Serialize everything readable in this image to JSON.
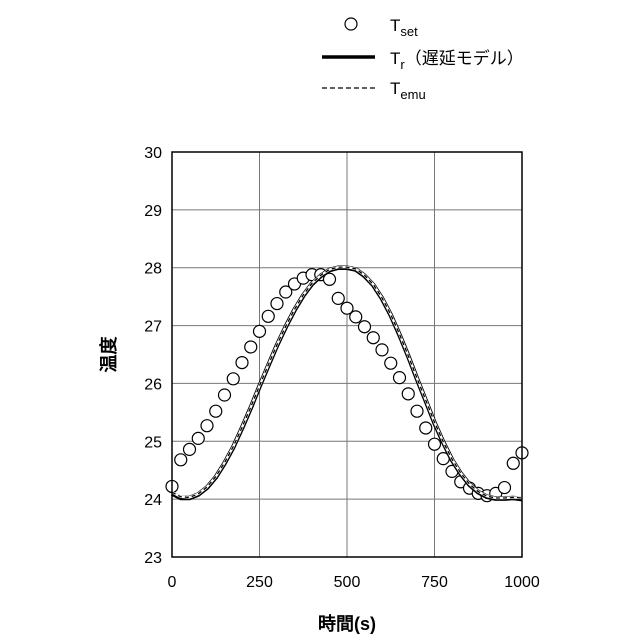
{
  "chart_data": {
    "type": "line",
    "xlabel": "時間(s)",
    "ylabel": "温度",
    "xlim": [
      0,
      1000
    ],
    "ylim": [
      23,
      30
    ],
    "xticks": [
      0,
      250,
      500,
      750,
      1000
    ],
    "yticks": [
      23,
      24,
      25,
      26,
      27,
      28,
      29,
      30
    ],
    "grid": true,
    "legend_position": "top",
    "series": [
      {
        "name": "Tset",
        "name_base": "T",
        "name_sub": "set",
        "style": "markers-open-circle",
        "x": [
          0,
          25,
          50,
          75,
          100,
          125,
          150,
          175,
          200,
          225,
          250,
          275,
          300,
          325,
          350,
          375,
          400,
          425,
          450,
          475,
          500,
          525,
          550,
          575,
          600,
          625,
          650,
          675,
          700,
          725,
          750,
          775,
          800,
          825,
          850,
          875,
          900,
          925,
          950,
          975,
          1000
        ],
        "y": [
          24.22,
          24.68,
          24.86,
          25.05,
          25.27,
          25.52,
          25.8,
          26.08,
          26.36,
          26.63,
          26.9,
          27.16,
          27.38,
          27.58,
          27.72,
          27.82,
          27.88,
          27.88,
          27.8,
          27.47,
          27.3,
          27.15,
          26.98,
          26.79,
          26.58,
          26.35,
          26.1,
          25.82,
          25.52,
          25.23,
          24.95,
          24.7,
          24.48,
          24.3,
          24.19,
          24.1,
          24.06,
          24.1,
          24.2,
          24.62,
          24.8
        ]
      },
      {
        "name": "Tr（遅延モデル）",
        "name_base": "T",
        "name_sub": "r",
        "name_suffix": "（遅延モデル）",
        "style": "solid",
        "color": "#000000",
        "x": [
          0,
          25,
          50,
          75,
          100,
          125,
          150,
          175,
          200,
          225,
          250,
          275,
          300,
          325,
          350,
          375,
          400,
          425,
          450,
          475,
          500,
          525,
          550,
          575,
          600,
          625,
          650,
          675,
          700,
          725,
          750,
          775,
          800,
          825,
          850,
          875,
          900,
          925,
          950,
          975,
          1000
        ],
        "y": [
          24.1,
          24.02,
          24.02,
          24.08,
          24.2,
          24.38,
          24.62,
          24.9,
          25.23,
          25.58,
          25.95,
          26.31,
          26.66,
          26.98,
          27.27,
          27.52,
          27.72,
          27.86,
          27.96,
          28.0,
          28.0,
          27.97,
          27.86,
          27.7,
          27.47,
          27.18,
          26.84,
          26.47,
          26.08,
          25.7,
          25.32,
          24.98,
          24.68,
          24.44,
          24.25,
          24.12,
          24.04,
          24.01,
          24.01,
          24.02,
          24.0
        ]
      },
      {
        "name": "Temu",
        "name_base": "T",
        "name_sub": "emu",
        "style": "dashed",
        "color": "#000000",
        "x": [
          0,
          25,
          50,
          75,
          100,
          125,
          150,
          175,
          200,
          225,
          250,
          275,
          300,
          325,
          350,
          375,
          400,
          425,
          450,
          475,
          500,
          525,
          550,
          575,
          600,
          625,
          650,
          675,
          700,
          725,
          750,
          775,
          800,
          825,
          850,
          875,
          900,
          925,
          950,
          975,
          1000
        ],
        "y": [
          24.12,
          24.04,
          24.03,
          24.09,
          24.21,
          24.39,
          24.63,
          24.91,
          25.24,
          25.59,
          25.96,
          26.32,
          26.67,
          26.99,
          27.28,
          27.53,
          27.73,
          27.87,
          27.97,
          28.01,
          28.01,
          27.98,
          27.87,
          27.71,
          27.48,
          27.19,
          26.85,
          26.48,
          26.09,
          25.71,
          25.33,
          24.99,
          24.69,
          24.45,
          24.26,
          24.13,
          24.05,
          24.02,
          24.02,
          24.03,
          24.02
        ]
      }
    ]
  }
}
